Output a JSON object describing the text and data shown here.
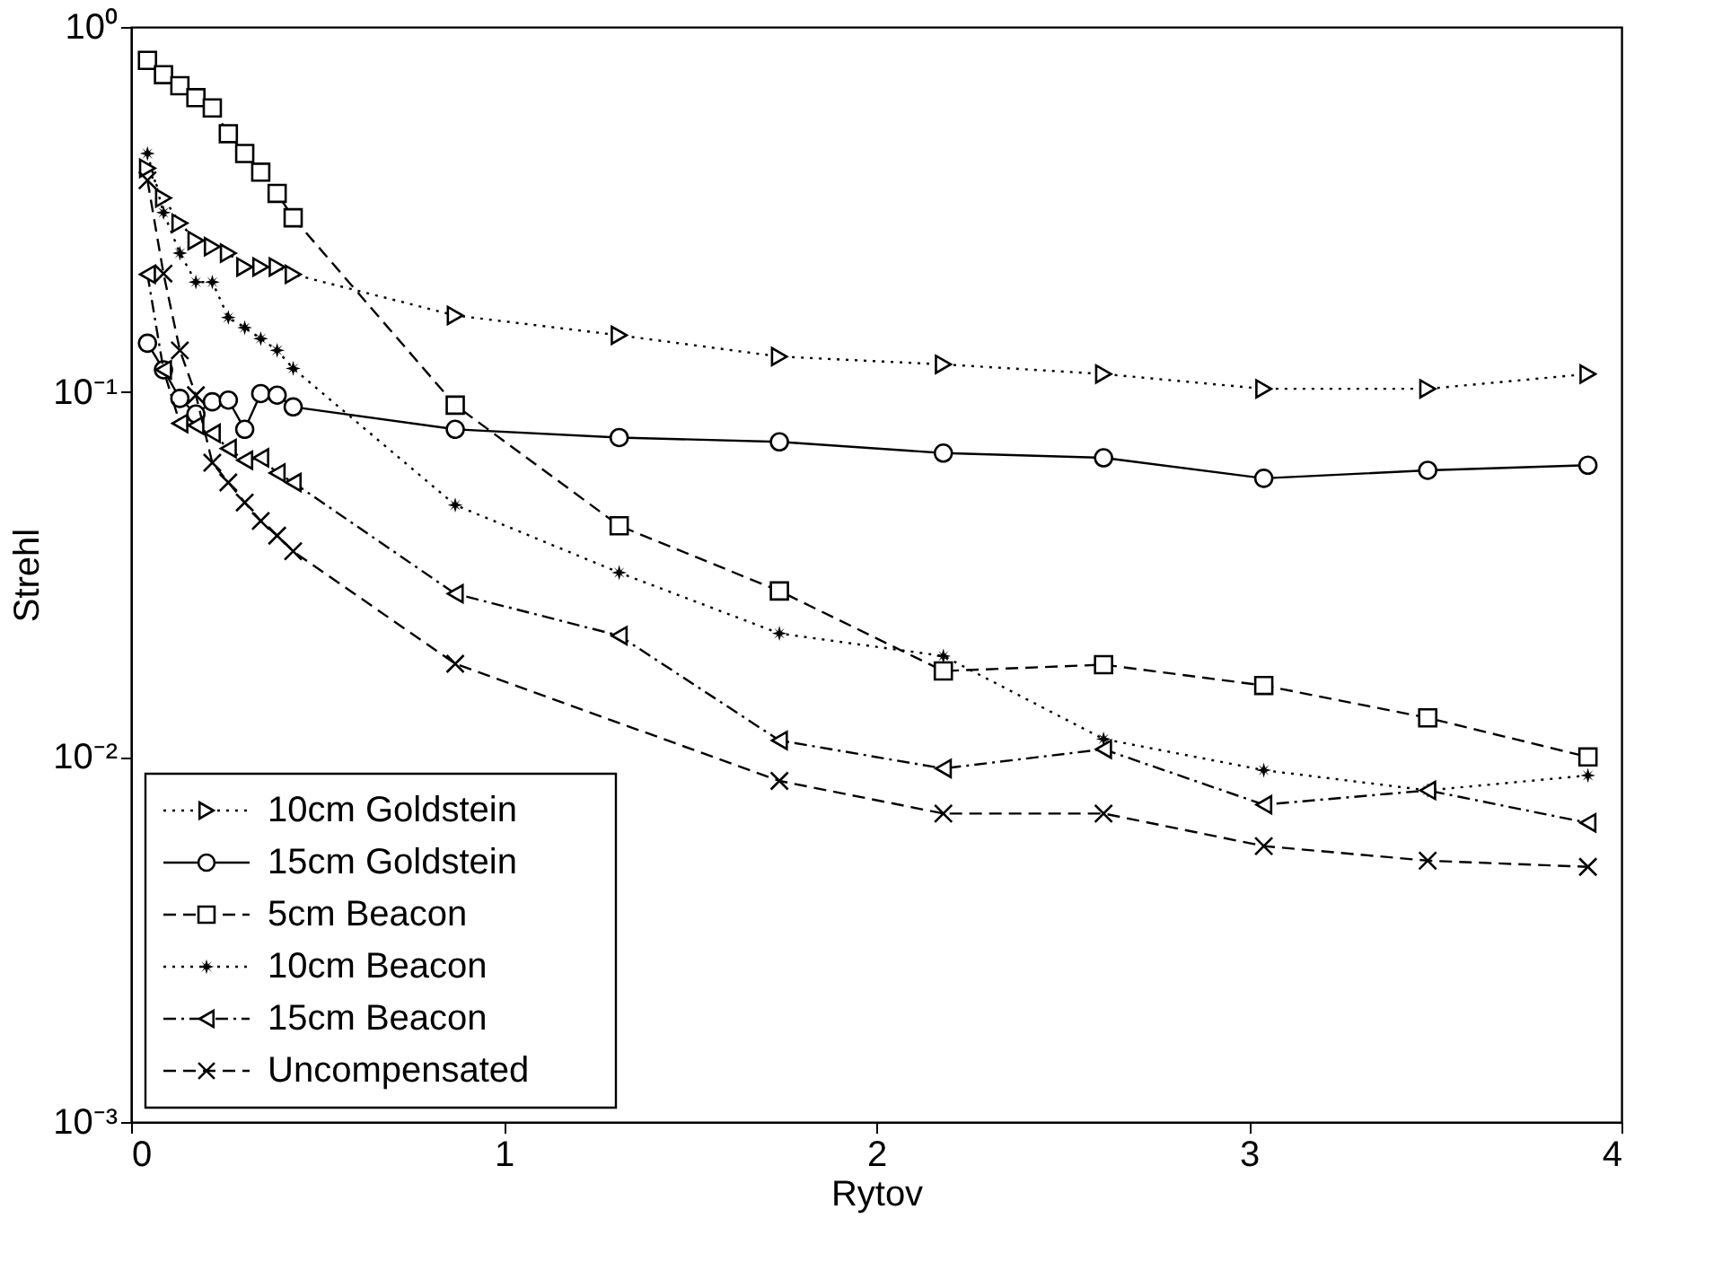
{
  "chart_data": {
    "type": "line",
    "xlabel": "Rytov",
    "ylabel": "Strehl",
    "log": "y",
    "grid": false,
    "legend": "bottom left",
    "xlim": [
      0,
      4
    ],
    "xticks": [
      0,
      1,
      2,
      3,
      4
    ],
    "ylim": [
      0.001,
      1
    ],
    "yticks": [
      {
        "value": 1,
        "label": "10⁰"
      },
      {
        "value": 0.1,
        "label": "10⁻¹"
      },
      {
        "value": 0.01,
        "label": "10⁻²"
      },
      {
        "value": 0.001,
        "label": "10⁻³"
      }
    ],
    "x": [
      0.044,
      0.087,
      0.131,
      0.174,
      0.218,
      0.261,
      0.305,
      0.348,
      0.392,
      0.435,
      0.87,
      1.31,
      1.74,
      2.18,
      2.61,
      3.04,
      3.48,
      3.91
    ],
    "series": [
      {
        "name": "10cm Goldstein",
        "color": "#000000",
        "marker": "triangle-right",
        "line_style": "dotted",
        "values": [
          0.41,
          0.34,
          0.29,
          0.26,
          0.25,
          0.24,
          0.22,
          0.22,
          0.22,
          0.21,
          0.162,
          0.143,
          0.125,
          0.119,
          0.112,
          0.102,
          0.102,
          0.112
        ]
      },
      {
        "name": "15cm Goldstein",
        "color": "#000000",
        "marker": "circle",
        "line_style": "solid",
        "values": [
          0.136,
          0.115,
          0.096,
          0.087,
          0.094,
          0.095,
          0.079,
          0.099,
          0.098,
          0.091,
          0.079,
          0.075,
          0.073,
          0.068,
          0.066,
          0.058,
          0.061,
          0.063
        ]
      },
      {
        "name": "5cm Beacon",
        "color": "#000000",
        "marker": "square",
        "line_style": "dashed",
        "values": [
          0.81,
          0.74,
          0.69,
          0.64,
          0.6,
          0.51,
          0.45,
          0.4,
          0.35,
          0.3,
          0.092,
          0.043,
          0.0285,
          0.0172,
          0.0179,
          0.0157,
          0.0128,
          0.01
        ]
      },
      {
        "name": "10cm Beacon",
        "color": "#000000",
        "marker": "star",
        "line_style": "dotted",
        "values": [
          0.45,
          0.31,
          0.24,
          0.2,
          0.2,
          0.16,
          0.15,
          0.14,
          0.13,
          0.116,
          0.049,
          0.032,
          0.0218,
          0.0189,
          0.0112,
          0.0092,
          0.0081,
          0.0089
        ]
      },
      {
        "name": "15cm Beacon",
        "color": "#000000",
        "marker": "triangle-left",
        "line_style": "dashdot",
        "values": [
          0.21,
          0.115,
          0.082,
          0.081,
          0.077,
          0.07,
          0.065,
          0.066,
          0.06,
          0.0565,
          0.028,
          0.0215,
          0.0111,
          0.0093,
          0.0105,
          0.0074,
          0.0081,
          0.0066
        ]
      },
      {
        "name": "Uncompensated",
        "color": "#000000",
        "marker": "cross",
        "line_style": "dashed",
        "values": [
          0.38,
          0.211,
          0.13,
          0.098,
          0.064,
          0.0565,
          0.0498,
          0.0443,
          0.0404,
          0.0366,
          0.018,
          null,
          0.0086,
          0.007,
          0.007,
          0.0057,
          0.0052,
          0.005
        ]
      }
    ]
  }
}
